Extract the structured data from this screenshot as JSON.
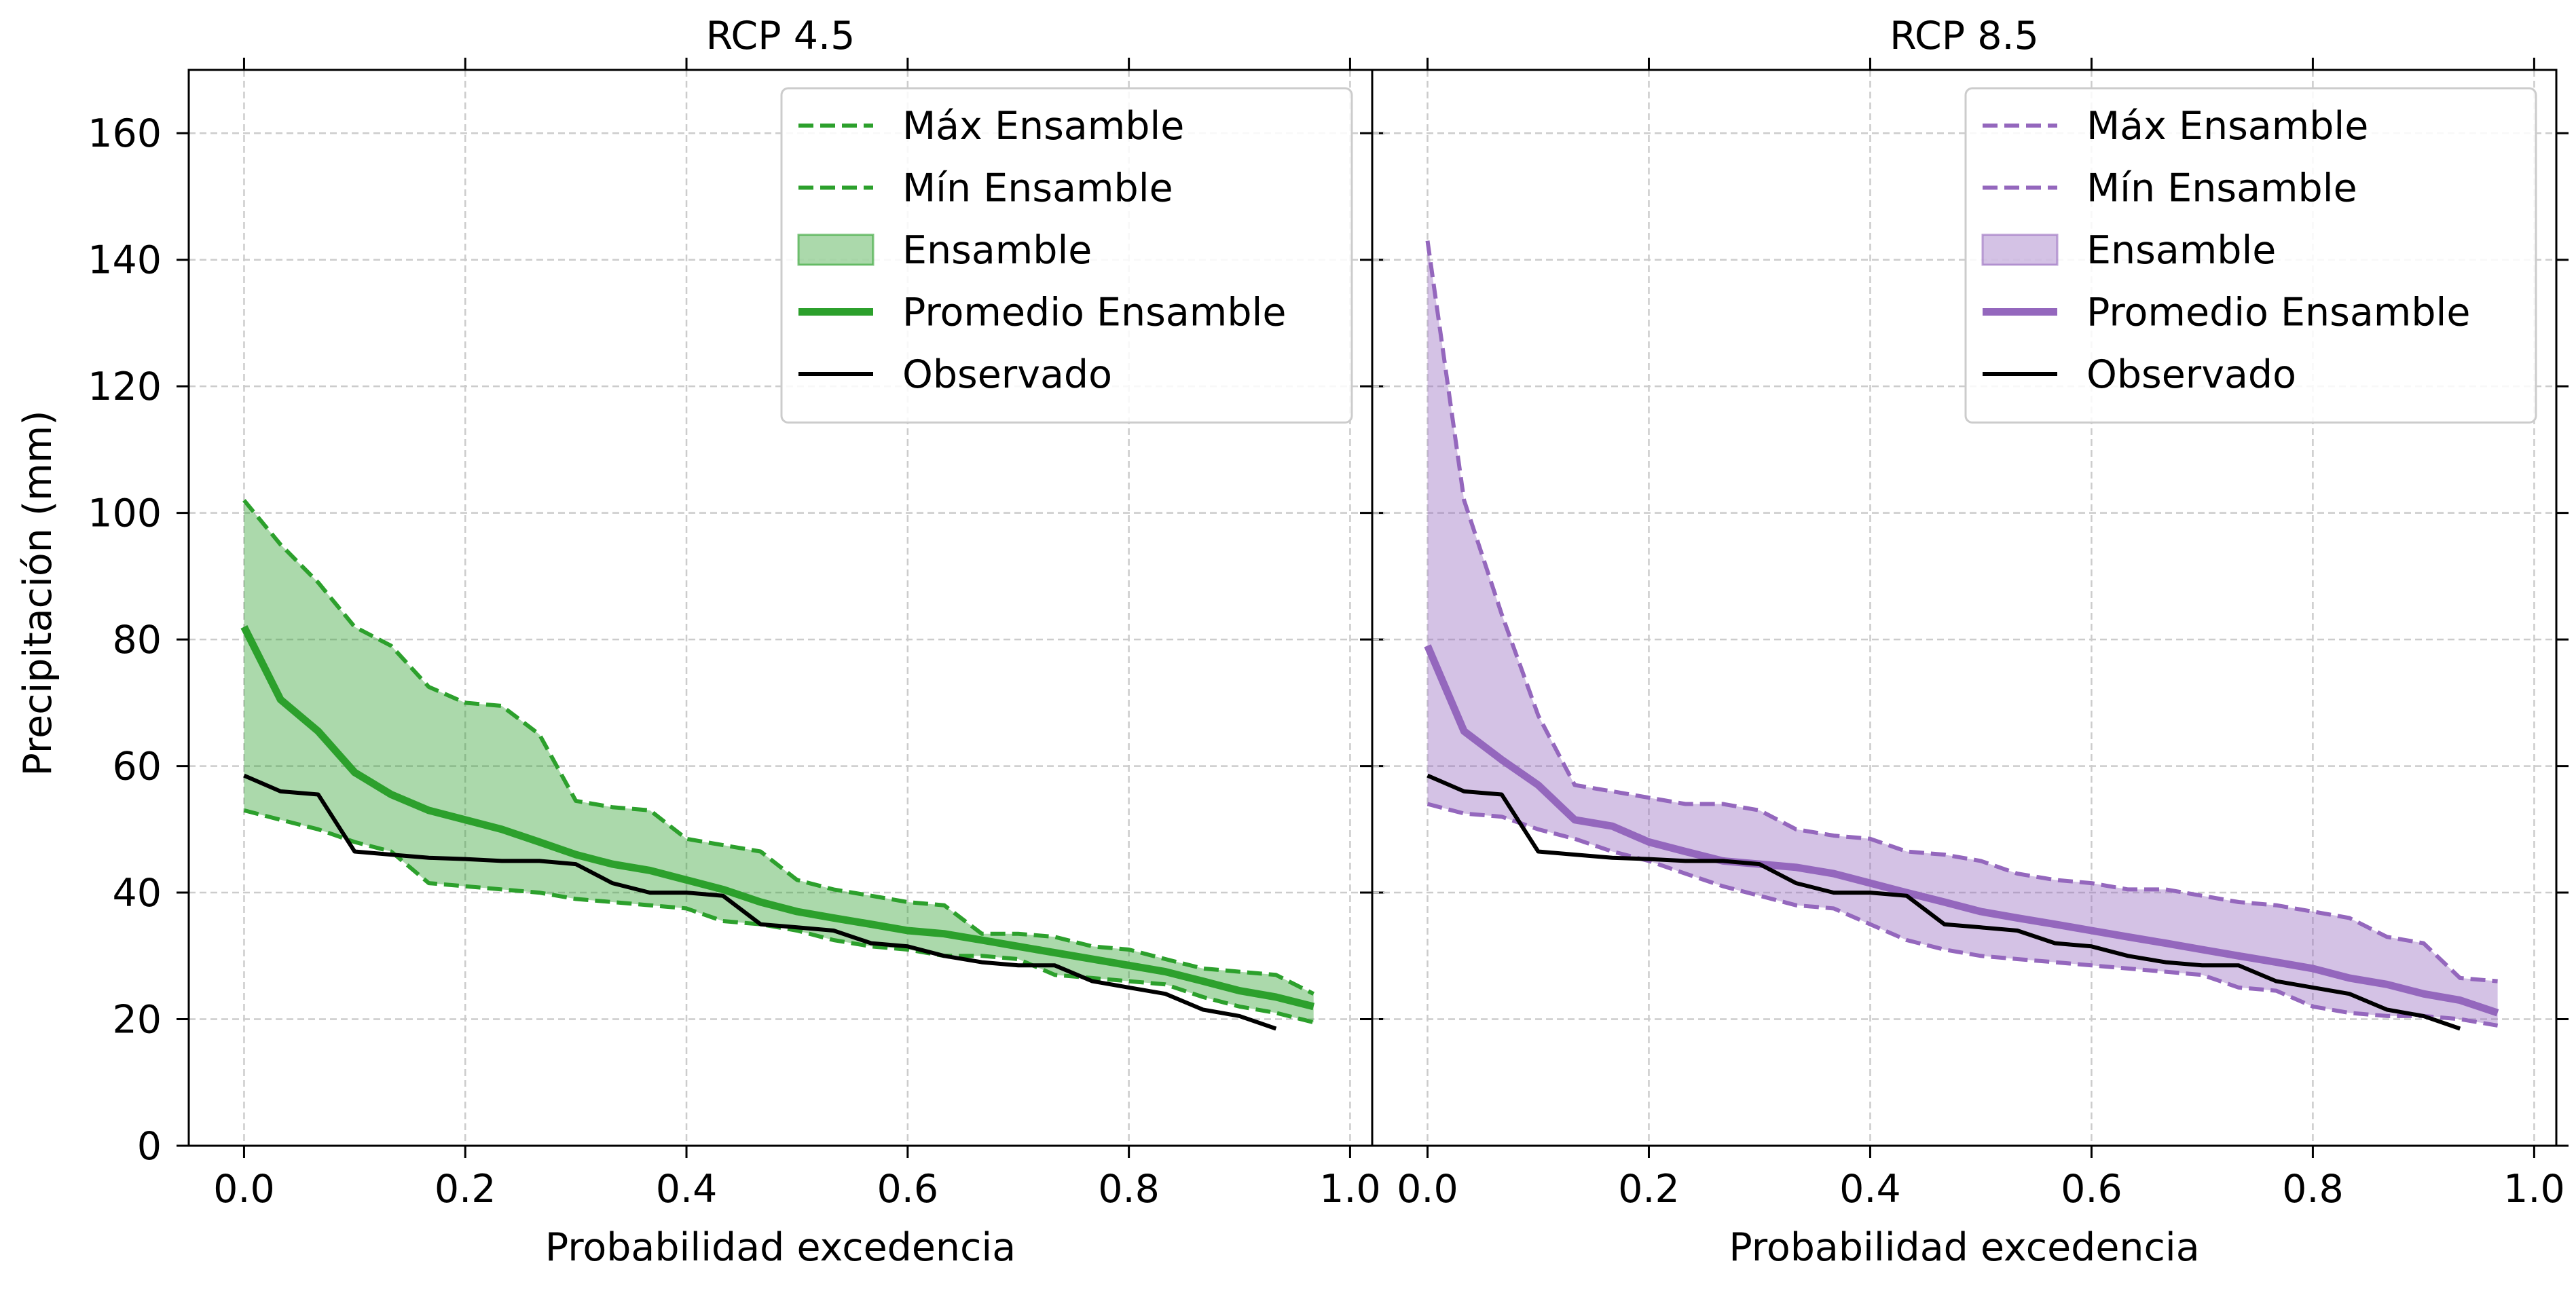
{
  "figure": {
    "ylabel": "Precipitación (mm)"
  },
  "chart_data": [
    {
      "type": "line",
      "title": "RCP 4.5",
      "xlabel": "Probabilidad excedencia",
      "ylabel": "Precipitación (mm)",
      "xlim": [
        -0.05,
        1.02
      ],
      "ylim": [
        0,
        170
      ],
      "xticks": [
        "0.0",
        "0.2",
        "0.4",
        "0.6",
        "0.8",
        "1.0"
      ],
      "yticks": [
        "0",
        "20",
        "40",
        "60",
        "80",
        "100",
        "120",
        "140",
        "160"
      ],
      "grid": true,
      "legend_position": "top-right",
      "color": "#2ca02c",
      "fill_color": "#2ca02c",
      "x_ensemble": [
        0.0,
        0.033,
        0.067,
        0.1,
        0.133,
        0.167,
        0.2,
        0.233,
        0.267,
        0.3,
        0.333,
        0.367,
        0.4,
        0.433,
        0.467,
        0.5,
        0.533,
        0.567,
        0.6,
        0.633,
        0.667,
        0.7,
        0.733,
        0.767,
        0.8,
        0.833,
        0.867,
        0.9,
        0.933,
        0.967
      ],
      "series": [
        {
          "name": "Máx Ensamble",
          "style": "dashed",
          "values": [
            102,
            95,
            89,
            82,
            79,
            72.5,
            70,
            69.5,
            65,
            54.5,
            53.5,
            53,
            48.5,
            47.5,
            46.5,
            42,
            40.5,
            39.5,
            38.5,
            38,
            33.5,
            33.5,
            33,
            31.5,
            31,
            29.5,
            28,
            27.5,
            27,
            24
          ]
        },
        {
          "name": "Mín Ensamble",
          "style": "dashed",
          "values": [
            53,
            51.5,
            50,
            48,
            46.5,
            41.5,
            41,
            40.5,
            40,
            39,
            38.5,
            38,
            37.5,
            35.5,
            35,
            34,
            32.5,
            31.5,
            31,
            30,
            30,
            29.5,
            27,
            26.5,
            26,
            25.5,
            23.5,
            22,
            21,
            19.5
          ]
        },
        {
          "name": "Promedio Ensamble",
          "style": "solid-thick",
          "values": [
            82,
            70.5,
            65.5,
            59,
            55.5,
            53,
            51.5,
            50,
            48,
            46,
            44.5,
            43.5,
            42,
            40.5,
            38.5,
            37,
            36,
            35,
            34,
            33.5,
            32.5,
            31.5,
            30.5,
            29.5,
            28.5,
            27.5,
            26,
            24.5,
            23.5,
            22
          ]
        },
        {
          "name": "Observado",
          "style": "solid-black",
          "x": [
            0.0,
            0.033,
            0.067,
            0.1,
            0.133,
            0.167,
            0.2,
            0.233,
            0.267,
            0.3,
            0.333,
            0.367,
            0.4,
            0.433,
            0.467,
            0.5,
            0.533,
            0.567,
            0.6,
            0.633,
            0.667,
            0.7,
            0.733,
            0.767,
            0.8,
            0.833,
            0.867,
            0.9,
            0.933
          ],
          "values": [
            58.5,
            56,
            55.5,
            46.5,
            46,
            45.5,
            45.3,
            45,
            45,
            44.5,
            41.5,
            40,
            40,
            39.5,
            35,
            34.5,
            34,
            32,
            31.5,
            30,
            29,
            28.5,
            28.5,
            26,
            25,
            24,
            21.5,
            20.5,
            18.5
          ]
        }
      ],
      "ensemble_band": {
        "name": "Ensamble",
        "upper": "Máx Ensamble",
        "lower": "Mín Ensamble"
      },
      "legend": [
        "Máx Ensamble",
        "Mín Ensamble",
        "Ensamble",
        "Promedio Ensamble",
        "Observado"
      ]
    },
    {
      "type": "line",
      "title": "RCP 8.5",
      "xlabel": "Probabilidad excedencia",
      "ylabel": "Precipitación (mm)",
      "xlim": [
        -0.05,
        1.02
      ],
      "ylim": [
        0,
        170
      ],
      "xticks": [
        "0.0",
        "0.2",
        "0.4",
        "0.6",
        "0.8",
        "1.0"
      ],
      "yticks": [
        "0",
        "20",
        "40",
        "60",
        "80",
        "100",
        "120",
        "140",
        "160"
      ],
      "grid": true,
      "legend_position": "top-right",
      "color": "#9467bd",
      "fill_color": "#9467bd",
      "x_ensemble": [
        0.0,
        0.033,
        0.067,
        0.1,
        0.133,
        0.167,
        0.2,
        0.233,
        0.267,
        0.3,
        0.333,
        0.367,
        0.4,
        0.433,
        0.467,
        0.5,
        0.533,
        0.567,
        0.6,
        0.633,
        0.667,
        0.7,
        0.733,
        0.767,
        0.8,
        0.833,
        0.867,
        0.9,
        0.933,
        0.967
      ],
      "series": [
        {
          "name": "Máx Ensamble",
          "style": "dashed",
          "values": [
            143,
            102,
            84,
            68,
            57,
            56,
            55,
            54,
            54,
            53,
            50,
            49,
            48.5,
            46.5,
            46,
            45,
            43,
            42,
            41.5,
            40.5,
            40.5,
            39.5,
            38.5,
            38,
            37,
            36,
            33,
            32,
            26.5,
            26
          ]
        },
        {
          "name": "Mín Ensamble",
          "style": "dashed",
          "values": [
            54,
            52.5,
            52,
            50,
            48.5,
            46.5,
            45,
            43,
            41,
            39.5,
            38,
            37.5,
            35,
            32.5,
            31,
            30,
            29.5,
            29,
            28.5,
            28,
            27.5,
            27,
            25,
            24.5,
            22,
            21,
            20.5,
            20.5,
            20,
            19
          ]
        },
        {
          "name": "Promedio Ensamble",
          "style": "solid-thick",
          "values": [
            79,
            65.5,
            61,
            57,
            51.5,
            50.5,
            48,
            46.5,
            45,
            44.5,
            44,
            43,
            41.5,
            40,
            38.5,
            37,
            36,
            35,
            34,
            33,
            32,
            31,
            30,
            29,
            28,
            26.5,
            25.5,
            24,
            23,
            21
          ]
        },
        {
          "name": "Observado",
          "style": "solid-black",
          "x": [
            0.0,
            0.033,
            0.067,
            0.1,
            0.133,
            0.167,
            0.2,
            0.233,
            0.267,
            0.3,
            0.333,
            0.367,
            0.4,
            0.433,
            0.467,
            0.5,
            0.533,
            0.567,
            0.6,
            0.633,
            0.667,
            0.7,
            0.733,
            0.767,
            0.8,
            0.833,
            0.867,
            0.9,
            0.933
          ],
          "values": [
            58.5,
            56,
            55.5,
            46.5,
            46,
            45.5,
            45.3,
            45,
            45,
            44.5,
            41.5,
            40,
            40,
            39.5,
            35,
            34.5,
            34,
            32,
            31.5,
            30,
            29,
            28.5,
            28.5,
            26,
            25,
            24,
            21.5,
            20.5,
            18.5
          ]
        }
      ],
      "ensemble_band": {
        "name": "Ensamble",
        "upper": "Máx Ensamble",
        "lower": "Mín Ensamble"
      },
      "legend": [
        "Máx Ensamble",
        "Mín Ensamble",
        "Ensamble",
        "Promedio Ensamble",
        "Observado"
      ]
    }
  ]
}
